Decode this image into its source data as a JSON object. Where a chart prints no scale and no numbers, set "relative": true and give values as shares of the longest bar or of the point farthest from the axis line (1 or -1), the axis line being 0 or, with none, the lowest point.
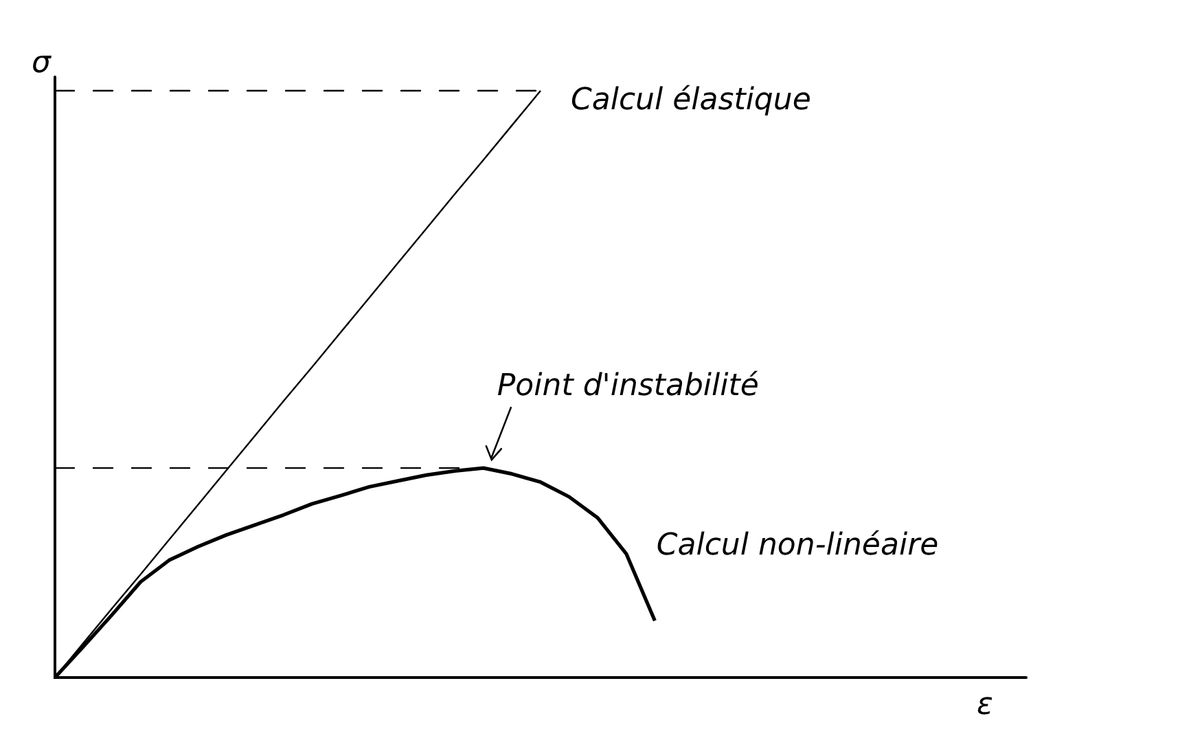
{
  "chart_data": {
    "type": "line",
    "relative": true,
    "xlabel": "ε",
    "ylabel": "σ",
    "categories": [
      null,
      null,
      null,
      null,
      null,
      null,
      null,
      null,
      null,
      null,
      null,
      null,
      null,
      null,
      null,
      null,
      null,
      null,
      null,
      null,
      null,
      null,
      null,
      null,
      null,
      null,
      null,
      null,
      null,
      null,
      null,
      null,
      null,
      null,
      null
    ],
    "series": [
      {
        "name": "Calcul élastique",
        "color": "#000000",
        "values": [
          0,
          0.059,
          0.118,
          0.176,
          0.235,
          0.294,
          0.353,
          0.412,
          0.471,
          0.529,
          0.588,
          0.647,
          0.706,
          0.765,
          0.824,
          0.882,
          0.941,
          1,
          null,
          null,
          null,
          null,
          null,
          null,
          null,
          null,
          null,
          null,
          null,
          null,
          null,
          null,
          null,
          null,
          null
        ]
      },
      {
        "name": "Calcul non-linéaire",
        "color": "#000000",
        "values": [
          0,
          0.053,
          0.107,
          0.163,
          0.2,
          0.223,
          0.243,
          0.26,
          0.277,
          0.296,
          0.31,
          0.325,
          0.335,
          0.345,
          0.352,
          0.357,
          0.347,
          0.333,
          0.308,
          0.272,
          0.211,
          0.097,
          null,
          null,
          null,
          null,
          null,
          null,
          null,
          null,
          null,
          null,
          null,
          null,
          null
        ]
      }
    ],
    "ref_lines": [
      {
        "axis": "y",
        "value": 1,
        "line_style": "dashed"
      },
      {
        "axis": "y",
        "value": 0.357,
        "line_style": "dashed"
      }
    ],
    "annotations": [
      "Point d'instabilité"
    ],
    "legend": false,
    "marker": "none",
    "line_style": "solid"
  }
}
